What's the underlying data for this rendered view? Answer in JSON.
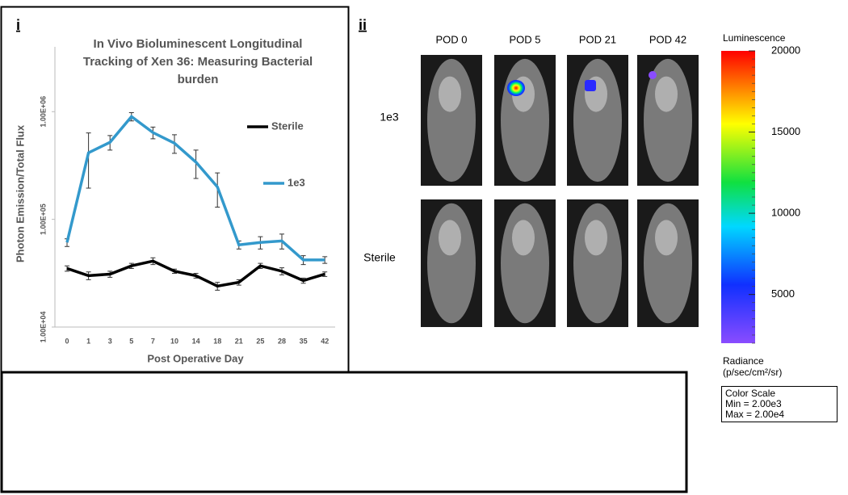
{
  "chart_data": {
    "type": "line",
    "panel_label": "i",
    "title": "In Vivo Bioluminescent Longitudinal Tracking of Xen 36: Measuring Bacterial burden",
    "y_label": "Photon Emission/Total Flux",
    "x_label": "Post Operative Day",
    "categories": [
      "0",
      "1",
      "3",
      "5",
      "7",
      "10",
      "14",
      "18",
      "21",
      "25",
      "28",
      "35",
      "42"
    ],
    "log_y": true,
    "ylim": [
      10000,
      4000000
    ],
    "yticks": [
      {
        "value": 10000,
        "label": "1.00E+04"
      },
      {
        "value": 100000,
        "label": "1.00E+05"
      },
      {
        "value": 1000000,
        "label": "1.00E+06"
      }
    ],
    "series": [
      {
        "name": "Sterile",
        "color": "#000000",
        "values": [
          35000,
          30000,
          31000,
          37000,
          41000,
          33000,
          30000,
          24000,
          26000,
          37000,
          33000,
          27000,
          31000
        ],
        "errors": [
          2000,
          2500,
          2000,
          2000,
          3000,
          1500,
          1500,
          2000,
          1500,
          2000,
          2500,
          1500,
          1500
        ]
      },
      {
        "name": "1e3",
        "color": "#3399cc",
        "values": [
          61000,
          415000,
          520000,
          900000,
          640000,
          510000,
          340000,
          200000,
          58000,
          61000,
          63000,
          42000,
          42000
        ],
        "errors": [
          5000,
          220000,
          80000,
          80000,
          80000,
          100000,
          100000,
          70000,
          5000,
          8000,
          10000,
          4000,
          3000
        ]
      }
    ]
  },
  "images": {
    "panel_label": "ii",
    "columns": [
      "POD 0",
      "POD 5",
      "POD 21",
      "POD 42"
    ],
    "rows": [
      "1e3",
      "Sterile"
    ]
  },
  "colorbar": {
    "title": "Luminescence",
    "clim": [
      2000,
      20000
    ],
    "ticks": [
      5000,
      10000,
      15000,
      20000
    ],
    "units_label": [
      "Radiance",
      "(p/sec/cm²/sr)"
    ],
    "scale_box": [
      "Color Scale",
      "Min = 2.00e3",
      "Max = 2.00e4"
    ]
  }
}
